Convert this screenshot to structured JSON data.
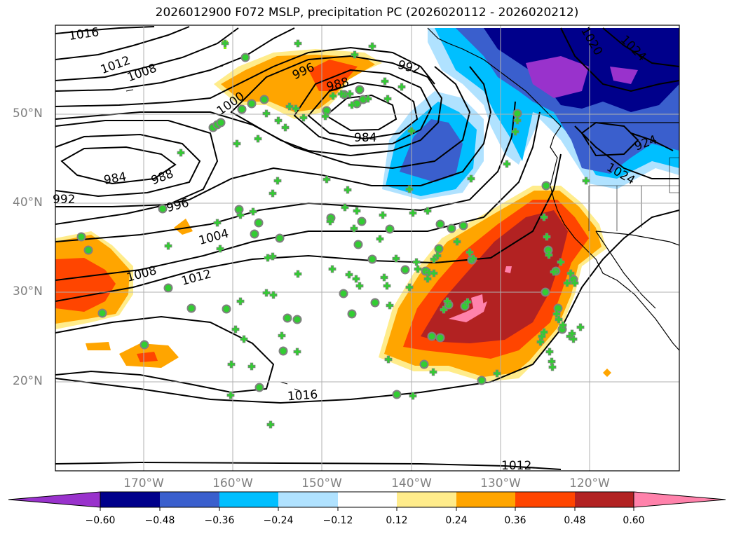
{
  "title": "2026012900 F072 MSLP, precipitation PC (2026020112 - 2026020212)",
  "map": {
    "lat_labels": [
      "50°N",
      "40°N",
      "30°N",
      "20°N"
    ],
    "lon_labels": [
      "170°W",
      "160°W",
      "150°W",
      "140°W",
      "130°W",
      "120°W"
    ],
    "isobar_labels": [
      "1016",
      "1012",
      "1008",
      "1000",
      "996",
      "988",
      "992",
      "984",
      "1020",
      "1024",
      "924",
      "1024",
      "984",
      "988",
      "992",
      "996",
      "1004",
      "1008",
      "1012",
      "1016",
      "1012"
    ]
  },
  "colorbar": {
    "ticks": [
      "−0.60",
      "−0.48",
      "−0.36",
      "−0.24",
      "−0.12",
      "0.12",
      "0.24",
      "0.36",
      "0.48",
      "0.60"
    ],
    "colors": [
      "#9932cc",
      "#00008b",
      "#3a5fcd",
      "#00bfff",
      "#b0e2ff",
      "#ffffff",
      "#ffec8b",
      "#ffa500",
      "#ff4500",
      "#b22222",
      "#ff82ab"
    ]
  }
}
